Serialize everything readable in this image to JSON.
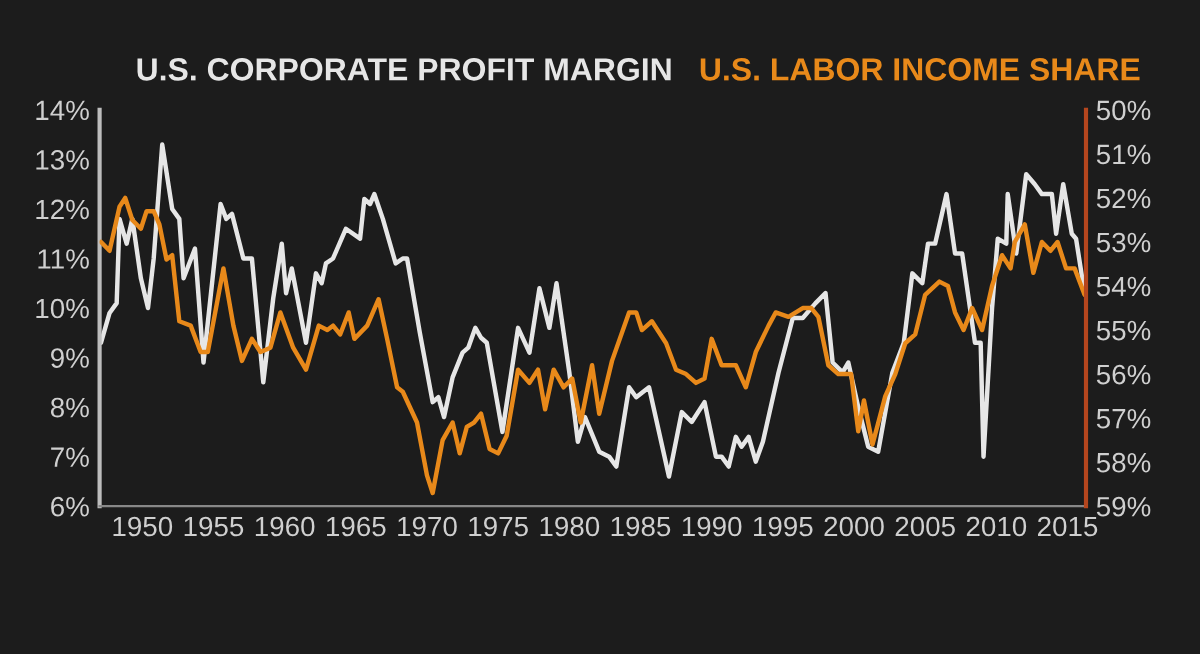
{
  "chart_data": {
    "type": "line",
    "series": [
      {
        "name": "U.S. CORPORATE PROFIT MARGIN",
        "color": "#e6e6e6",
        "axis": "y",
        "x": [
          1947.1,
          1947.7,
          1948.2,
          1948.4,
          1948.9,
          1949.3,
          1949.9,
          1950.4,
          1950.8,
          1951.4,
          1952.1,
          1952.6,
          1952.9,
          1953.7,
          1954.3,
          1955.5,
          1955.9,
          1956.3,
          1957.1,
          1957.7,
          1958.5,
          1959.2,
          1959.8,
          1960.1,
          1960.5,
          1961.5,
          1962.2,
          1962.6,
          1962.9,
          1963.4,
          1964.3,
          1965.3,
          1965.6,
          1966.0,
          1966.3,
          1966.9,
          1967.8,
          1968.3,
          1968.6,
          1969.5,
          1970.4,
          1970.8,
          1971.2,
          1971.8,
          1972.5,
          1972.9,
          1973.4,
          1973.8,
          1974.2,
          1975.3,
          1976.4,
          1977.2,
          1977.9,
          1978.6,
          1979.1,
          1980.0,
          1980.6,
          1981.1,
          1982.1,
          1982.8,
          1983.3,
          1984.2,
          1984.7,
          1985.6,
          1987.0,
          1987.9,
          1988.6,
          1989.5,
          1990.3,
          1990.7,
          1991.2,
          1991.7,
          1992.1,
          1992.6,
          1993.1,
          1993.6,
          1994.7,
          1995.7,
          1996.4,
          1997.3,
          1998.0,
          1998.5,
          1999.2,
          1999.6,
          2000.3,
          2001.0,
          2001.7,
          2002.7,
          2003.5,
          2004.1,
          2004.8,
          2005.2,
          2005.7,
          2006.5,
          2007.1,
          2007.6,
          2008.5,
          2008.9,
          2009.1,
          2009.7,
          2010.1,
          2010.7,
          2010.8,
          2011.4,
          2012.1,
          2012.7,
          2013.2,
          2013.9,
          2014.2,
          2014.7,
          2015.3,
          2015.6,
          2016.2
        ],
        "values": [
          9.3,
          9.9,
          10.1,
          11.8,
          11.3,
          11.8,
          10.6,
          10.0,
          11.0,
          13.3,
          12.0,
          11.8,
          10.6,
          11.2,
          8.9,
          12.1,
          11.8,
          11.9,
          11.0,
          11.0,
          8.5,
          10.2,
          11.3,
          10.3,
          10.8,
          9.3,
          10.7,
          10.5,
          10.9,
          11.0,
          11.6,
          11.4,
          12.2,
          12.1,
          12.3,
          11.8,
          10.9,
          11.0,
          11.0,
          9.5,
          8.1,
          8.2,
          7.8,
          8.6,
          9.1,
          9.2,
          9.6,
          9.4,
          9.3,
          7.5,
          9.6,
          9.1,
          10.4,
          9.6,
          10.5,
          8.7,
          7.3,
          7.8,
          7.1,
          7.0,
          6.8,
          8.4,
          8.2,
          8.4,
          6.6,
          7.9,
          7.7,
          8.1,
          7.0,
          7.0,
          6.8,
          7.4,
          7.2,
          7.4,
          6.9,
          7.3,
          8.7,
          9.8,
          9.8,
          10.1,
          10.3,
          8.9,
          8.7,
          8.9,
          8.0,
          7.2,
          7.1,
          8.7,
          9.3,
          10.7,
          10.5,
          11.3,
          11.3,
          12.3,
          11.1,
          11.1,
          9.3,
          9.3,
          7.0,
          10.0,
          11.4,
          11.3,
          12.3,
          11.1,
          12.7,
          12.5,
          12.3,
          12.3,
          11.5,
          12.5,
          11.5,
          11.4,
          10.3
        ]
      },
      {
        "name": "U.S. LABOR INCOME SHARE",
        "color": "#e8891a",
        "axis": "y2",
        "x": [
          1947.1,
          1947.7,
          1948.4,
          1948.8,
          1949.3,
          1949.9,
          1950.3,
          1950.8,
          1951.2,
          1951.7,
          1952.1,
          1952.6,
          1953.4,
          1954.1,
          1954.6,
          1955.7,
          1956.4,
          1957.0,
          1957.7,
          1958.3,
          1959.0,
          1959.7,
          1960.6,
          1961.5,
          1962.4,
          1963.0,
          1963.4,
          1963.9,
          1964.5,
          1964.9,
          1965.8,
          1966.6,
          1967.2,
          1967.9,
          1968.3,
          1969.3,
          1970.0,
          1970.4,
          1971.1,
          1971.8,
          1972.3,
          1972.8,
          1973.3,
          1973.8,
          1974.4,
          1975.0,
          1975.6,
          1976.4,
          1977.2,
          1977.8,
          1978.3,
          1978.9,
          1979.6,
          1980.2,
          1980.8,
          1981.6,
          1982.1,
          1983.0,
          1984.2,
          1984.7,
          1985.1,
          1985.8,
          1986.8,
          1987.5,
          1988.2,
          1988.9,
          1989.5,
          1990.0,
          1990.7,
          1991.7,
          1992.4,
          1993.1,
          1994.0,
          1994.5,
          1995.4,
          1996.4,
          1997.0,
          1997.5,
          1998.2,
          1998.9,
          1999.8,
          2000.3,
          2000.7,
          2001.3,
          2002.2,
          2002.9,
          2003.6,
          2004.3,
          2005.0,
          2006.0,
          2006.6,
          2007.1,
          2007.7,
          2008.3,
          2009.0,
          2009.7,
          2010.4,
          2011.0,
          2011.3,
          2012.0,
          2012.6,
          2013.2,
          2013.8,
          2014.3,
          2014.9,
          2015.5,
          2016.2
        ],
        "values": [
          53.0,
          53.2,
          52.2,
          52.0,
          52.5,
          52.7,
          52.3,
          52.3,
          52.6,
          53.4,
          53.3,
          54.8,
          54.9,
          55.5,
          55.5,
          53.6,
          54.9,
          55.7,
          55.2,
          55.5,
          55.4,
          54.6,
          55.4,
          55.9,
          54.9,
          55.0,
          54.9,
          55.1,
          54.6,
          55.2,
          54.9,
          54.3,
          55.2,
          56.3,
          56.4,
          57.1,
          58.3,
          58.7,
          57.5,
          57.1,
          57.8,
          57.2,
          57.1,
          56.9,
          57.7,
          57.8,
          57.4,
          55.9,
          56.2,
          55.9,
          56.8,
          55.9,
          56.3,
          56.1,
          57.1,
          55.8,
          56.9,
          55.7,
          54.6,
          54.6,
          55.0,
          54.8,
          55.3,
          55.9,
          56.0,
          56.2,
          56.1,
          55.2,
          55.8,
          55.8,
          56.3,
          55.5,
          54.9,
          54.6,
          54.7,
          54.5,
          54.5,
          54.7,
          55.8,
          56.0,
          56.0,
          57.3,
          56.6,
          57.6,
          56.5,
          56.0,
          55.3,
          55.1,
          54.2,
          53.9,
          54.0,
          54.6,
          55.0,
          54.5,
          55.0,
          54.0,
          53.3,
          53.6,
          53.0,
          52.6,
          53.7,
          53.0,
          53.2,
          53.0,
          53.6,
          53.6,
          54.2
        ]
      }
    ],
    "xlim": [
      1947,
      2016.3
    ],
    "xticks": [
      1950,
      1955,
      1960,
      1965,
      1970,
      1975,
      1980,
      1985,
      1990,
      1995,
      2000,
      2005,
      2010,
      2015
    ],
    "ylim": [
      6,
      14
    ],
    "yticks": [
      {
        "value": 6,
        "label": "6%"
      },
      {
        "value": 7,
        "label": "7%"
      },
      {
        "value": 8,
        "label": "8%"
      },
      {
        "value": 9,
        "label": "9%"
      },
      {
        "value": 10,
        "label": "10%"
      },
      {
        "value": 11,
        "label": "11%"
      },
      {
        "value": 12,
        "label": "12%"
      },
      {
        "value": 13,
        "label": "13%"
      },
      {
        "value": 14,
        "label": "14%"
      }
    ],
    "y2lim": [
      59,
      50
    ],
    "y2ticks": [
      {
        "value": 50,
        "label": "50%"
      },
      {
        "value": 51,
        "label": "51%"
      },
      {
        "value": 52,
        "label": "52%"
      },
      {
        "value": 53,
        "label": "53%"
      },
      {
        "value": 54,
        "label": "54%"
      },
      {
        "value": 55,
        "label": "55%"
      },
      {
        "value": 56,
        "label": "56%"
      },
      {
        "value": 57,
        "label": "57%"
      },
      {
        "value": 58,
        "label": "58%"
      },
      {
        "value": 59,
        "label": "59%"
      }
    ],
    "grid": false,
    "legend": "top left",
    "marker": "none",
    "line_style": "solid"
  }
}
